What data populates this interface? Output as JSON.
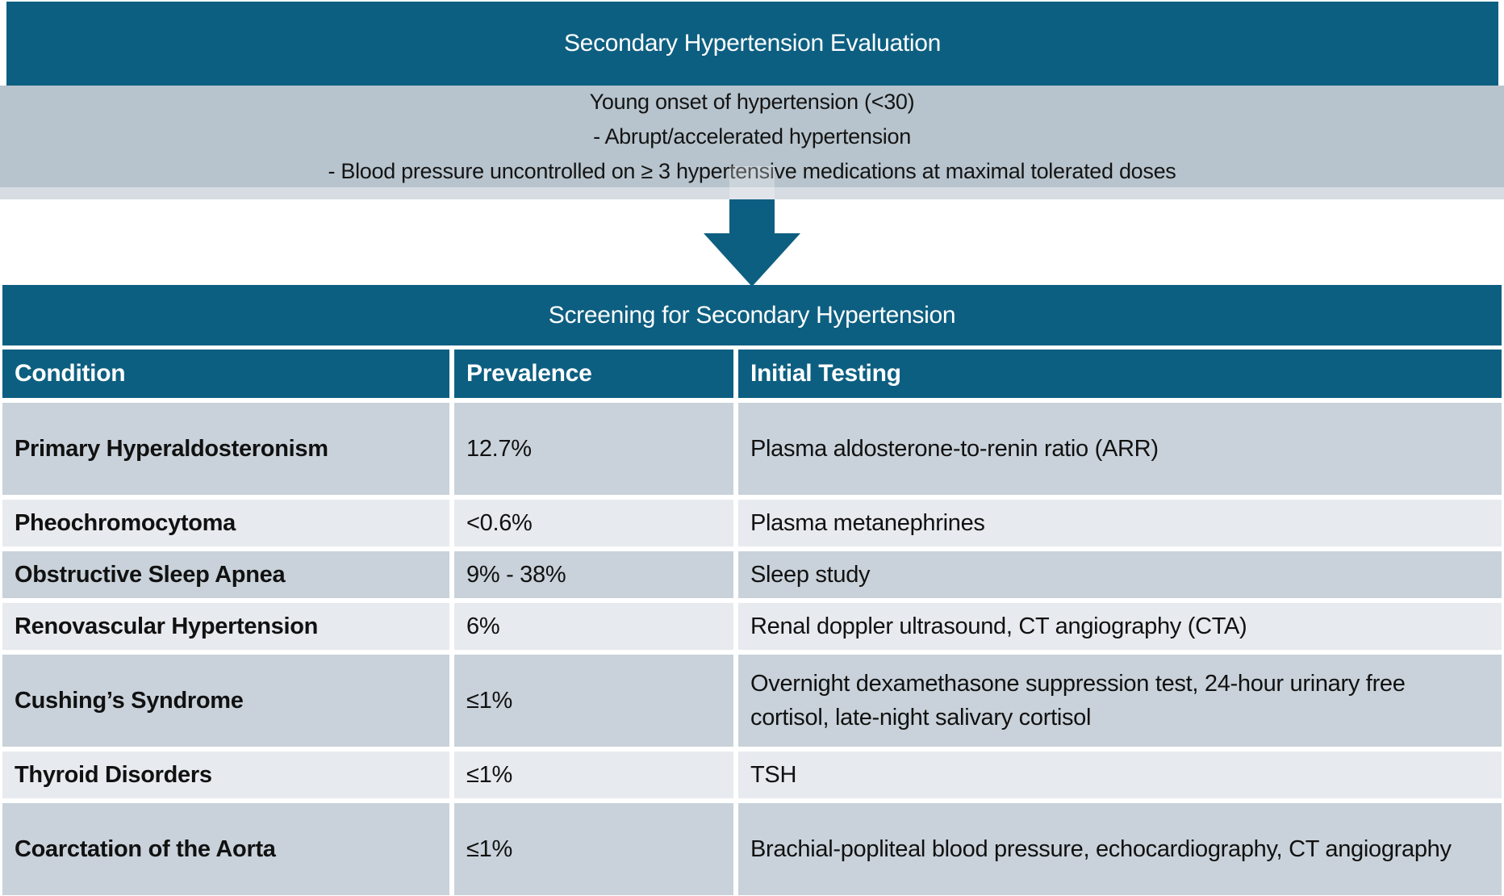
{
  "flowchart": {
    "title": "Secondary Hypertension Evaluation",
    "criteria": [
      "Young onset of hypertension (<30)",
      "- Abrupt/accelerated hypertension",
      "- Blood pressure uncontrolled on ≥ 3 hypertensive medications at maximal tolerated doses"
    ],
    "arrow": "down-arrow",
    "screening_title": "Screening for Secondary Hypertension"
  },
  "table": {
    "headers": [
      "Condition",
      "Prevalence",
      "Initial Testing"
    ],
    "rows": [
      {
        "condition": "Primary Hyperaldosteronism",
        "prevalence": "12.7%",
        "testing": "Plasma aldosterone-to-renin ratio (ARR)"
      },
      {
        "condition": "Pheochromocytoma",
        "prevalence": "<0.6%",
        "testing": "Plasma metanephrines"
      },
      {
        "condition": "Obstructive Sleep Apnea",
        "prevalence": "9% - 38%",
        "testing": "Sleep study"
      },
      {
        "condition": "Renovascular Hypertension",
        "prevalence": "6%",
        "testing": "Renal doppler ultrasound, CT angiography (CTA)"
      },
      {
        "condition": "Cushing’s Syndrome",
        "prevalence": "≤1%",
        "testing": "Overnight dexamethasone suppression test, 24-hour urinary free cortisol, late-night salivary cortisol"
      },
      {
        "condition": "Thyroid Disorders",
        "prevalence": "≤1%",
        "testing": "TSH"
      },
      {
        "condition": "Coarctation of the Aorta",
        "prevalence": "≤1%",
        "testing": "Brachial-popliteal blood pressure, echocardiography, CT angiography"
      }
    ]
  },
  "colors": {
    "teal": "#0D5F81",
    "box": "#B7C4CD",
    "strip": "#D6DCE2",
    "rowDark": "#C9D2DA",
    "rowLight": "#E7EAEE",
    "headerText": "#FFFFFF",
    "bodyText": "#111111"
  }
}
